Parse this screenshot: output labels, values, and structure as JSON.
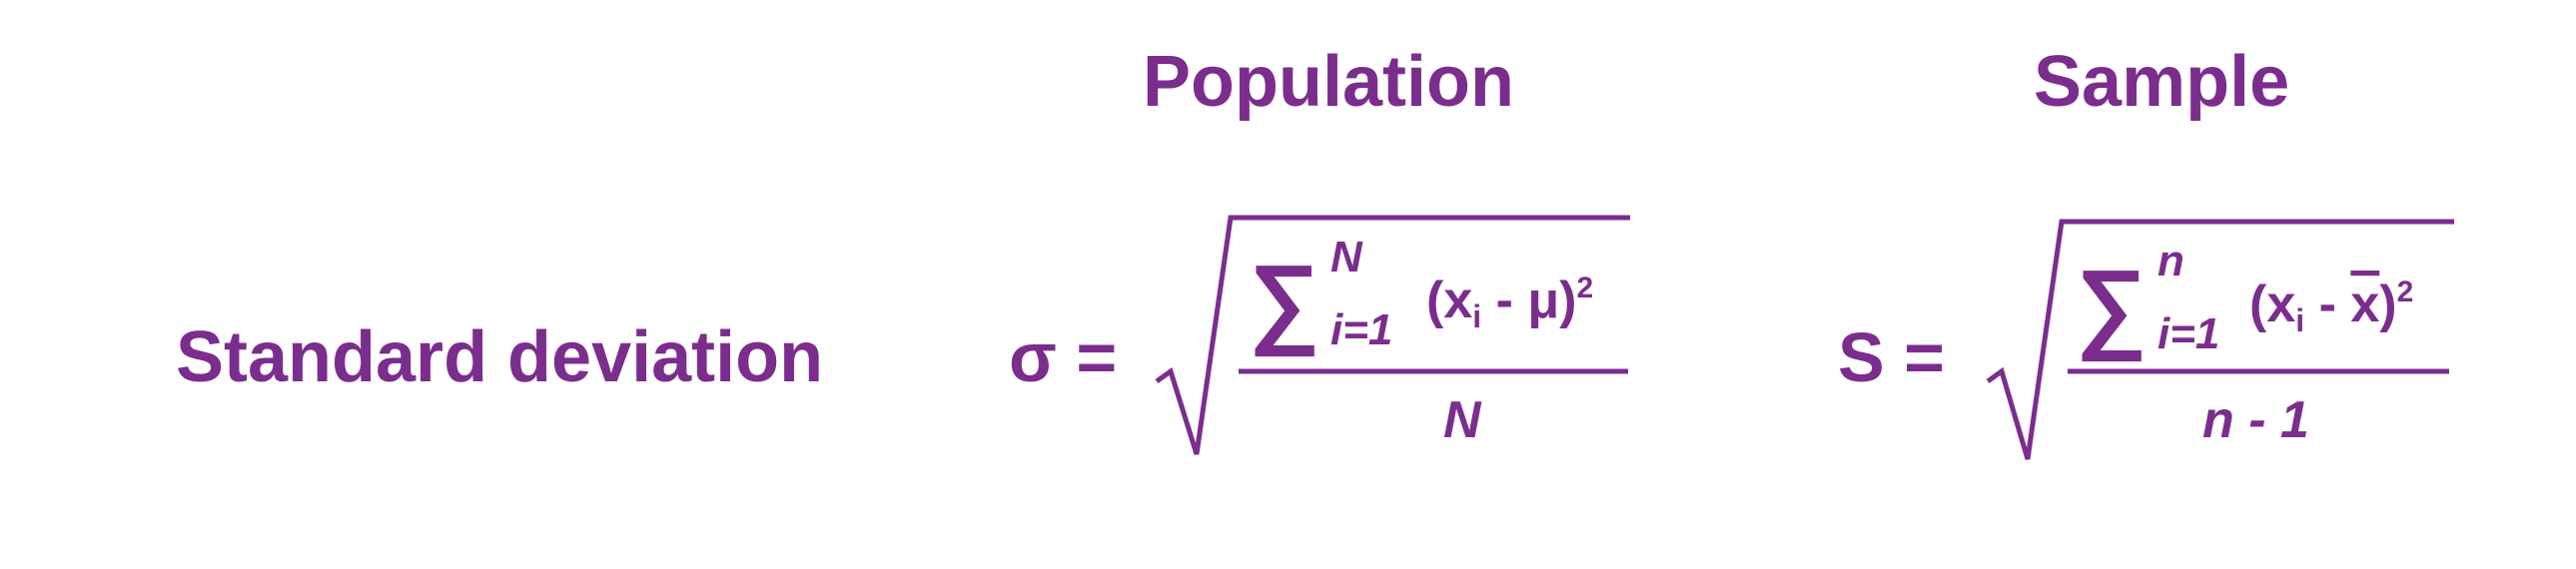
{
  "headings": {
    "population": "Population",
    "sample": "Sample"
  },
  "row_label": "Standard deviation",
  "formulas": {
    "population": {
      "lhs": "σ =",
      "sum_symbol": "∑",
      "upper_limit": "N",
      "lower_limit": "i=1",
      "term_open": "(x",
      "term_sub": "i",
      "term_rest": " - μ)",
      "exponent": "2",
      "denominator": "N"
    },
    "sample": {
      "lhs": "S =",
      "sum_symbol": "∑",
      "upper_limit": "n",
      "lower_limit": "i=1",
      "term_open": "(x",
      "term_sub": "i",
      "term_mid": " - ",
      "term_xbar": "x",
      "term_close": ")",
      "exponent": "2",
      "denominator": "n - 1"
    }
  },
  "colors": {
    "text": "#7b2d8e",
    "background": "#ffffff"
  }
}
